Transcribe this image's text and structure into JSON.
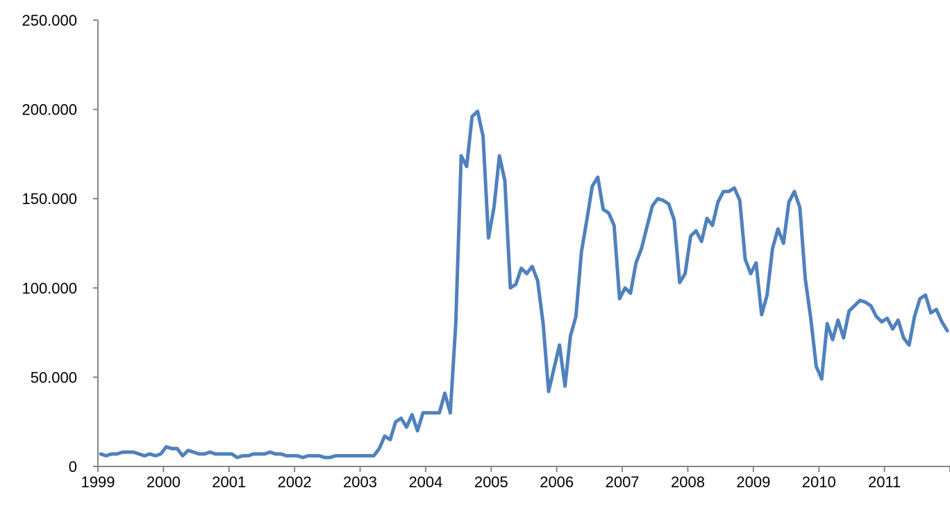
{
  "chart_data": {
    "type": "line",
    "title": "",
    "xlabel": "",
    "ylabel": "",
    "grid": false,
    "legend": "none",
    "ylim": [
      0,
      250000
    ],
    "y_ticks": [
      0,
      50000,
      100000,
      150000,
      200000,
      250000
    ],
    "y_tick_labels": [
      "0",
      "50.000",
      "100.000",
      "150.000",
      "200.000",
      "250.000"
    ],
    "x_range": [
      "1999-01",
      "2011-12"
    ],
    "x_tick_labels": [
      "1999",
      "2000",
      "2001",
      "2002",
      "2003",
      "2004",
      "2005",
      "2006",
      "2007",
      "2008",
      "2009",
      "2010",
      "2011"
    ],
    "line_color": "#4F81BD",
    "series": [
      {
        "values": [
          7000,
          6000,
          7000,
          7000,
          8000,
          8000,
          8000,
          7000,
          6000,
          7000,
          6000,
          7000,
          11000,
          10000,
          10000,
          6000,
          9000,
          8000,
          7000,
          7000,
          8000,
          7000,
          7000,
          7000,
          7000,
          5000,
          6000,
          6000,
          7000,
          7000,
          7000,
          8000,
          7000,
          7000,
          6000,
          6000,
          6000,
          5000,
          6000,
          6000,
          6000,
          5000,
          5000,
          6000,
          6000,
          6000,
          6000,
          6000,
          6000,
          6000,
          6000,
          10000,
          17000,
          15000,
          25000,
          27000,
          22000,
          29000,
          20000,
          30000,
          30000,
          30000,
          30000,
          41000,
          30000,
          80000,
          174000,
          168000,
          196000,
          199000,
          185000,
          128000,
          145000,
          174000,
          160000,
          100000,
          102000,
          111000,
          108000,
          112000,
          104000,
          80000,
          42000,
          55000,
          68000,
          45000,
          73000,
          84000,
          120000,
          138000,
          157000,
          162000,
          144000,
          142000,
          135000,
          94000,
          100000,
          97000,
          114000,
          122000,
          134000,
          146000,
          150000,
          149000,
          147000,
          138000,
          103000,
          108000,
          129000,
          132000,
          126000,
          139000,
          135000,
          148000,
          154000,
          154000,
          156000,
          149000,
          116000,
          108000,
          114000,
          85000,
          96000,
          122000,
          133000,
          125000,
          148000,
          154000,
          145000,
          105000,
          83000,
          56000,
          49000,
          80000,
          71000,
          82000,
          72000,
          87000,
          90000,
          93000,
          92000,
          90000,
          84000,
          81000,
          83000,
          77000,
          82000,
          72000,
          68000,
          84000,
          94000,
          96000,
          86000,
          88000,
          81000,
          76000
        ]
      }
    ]
  }
}
